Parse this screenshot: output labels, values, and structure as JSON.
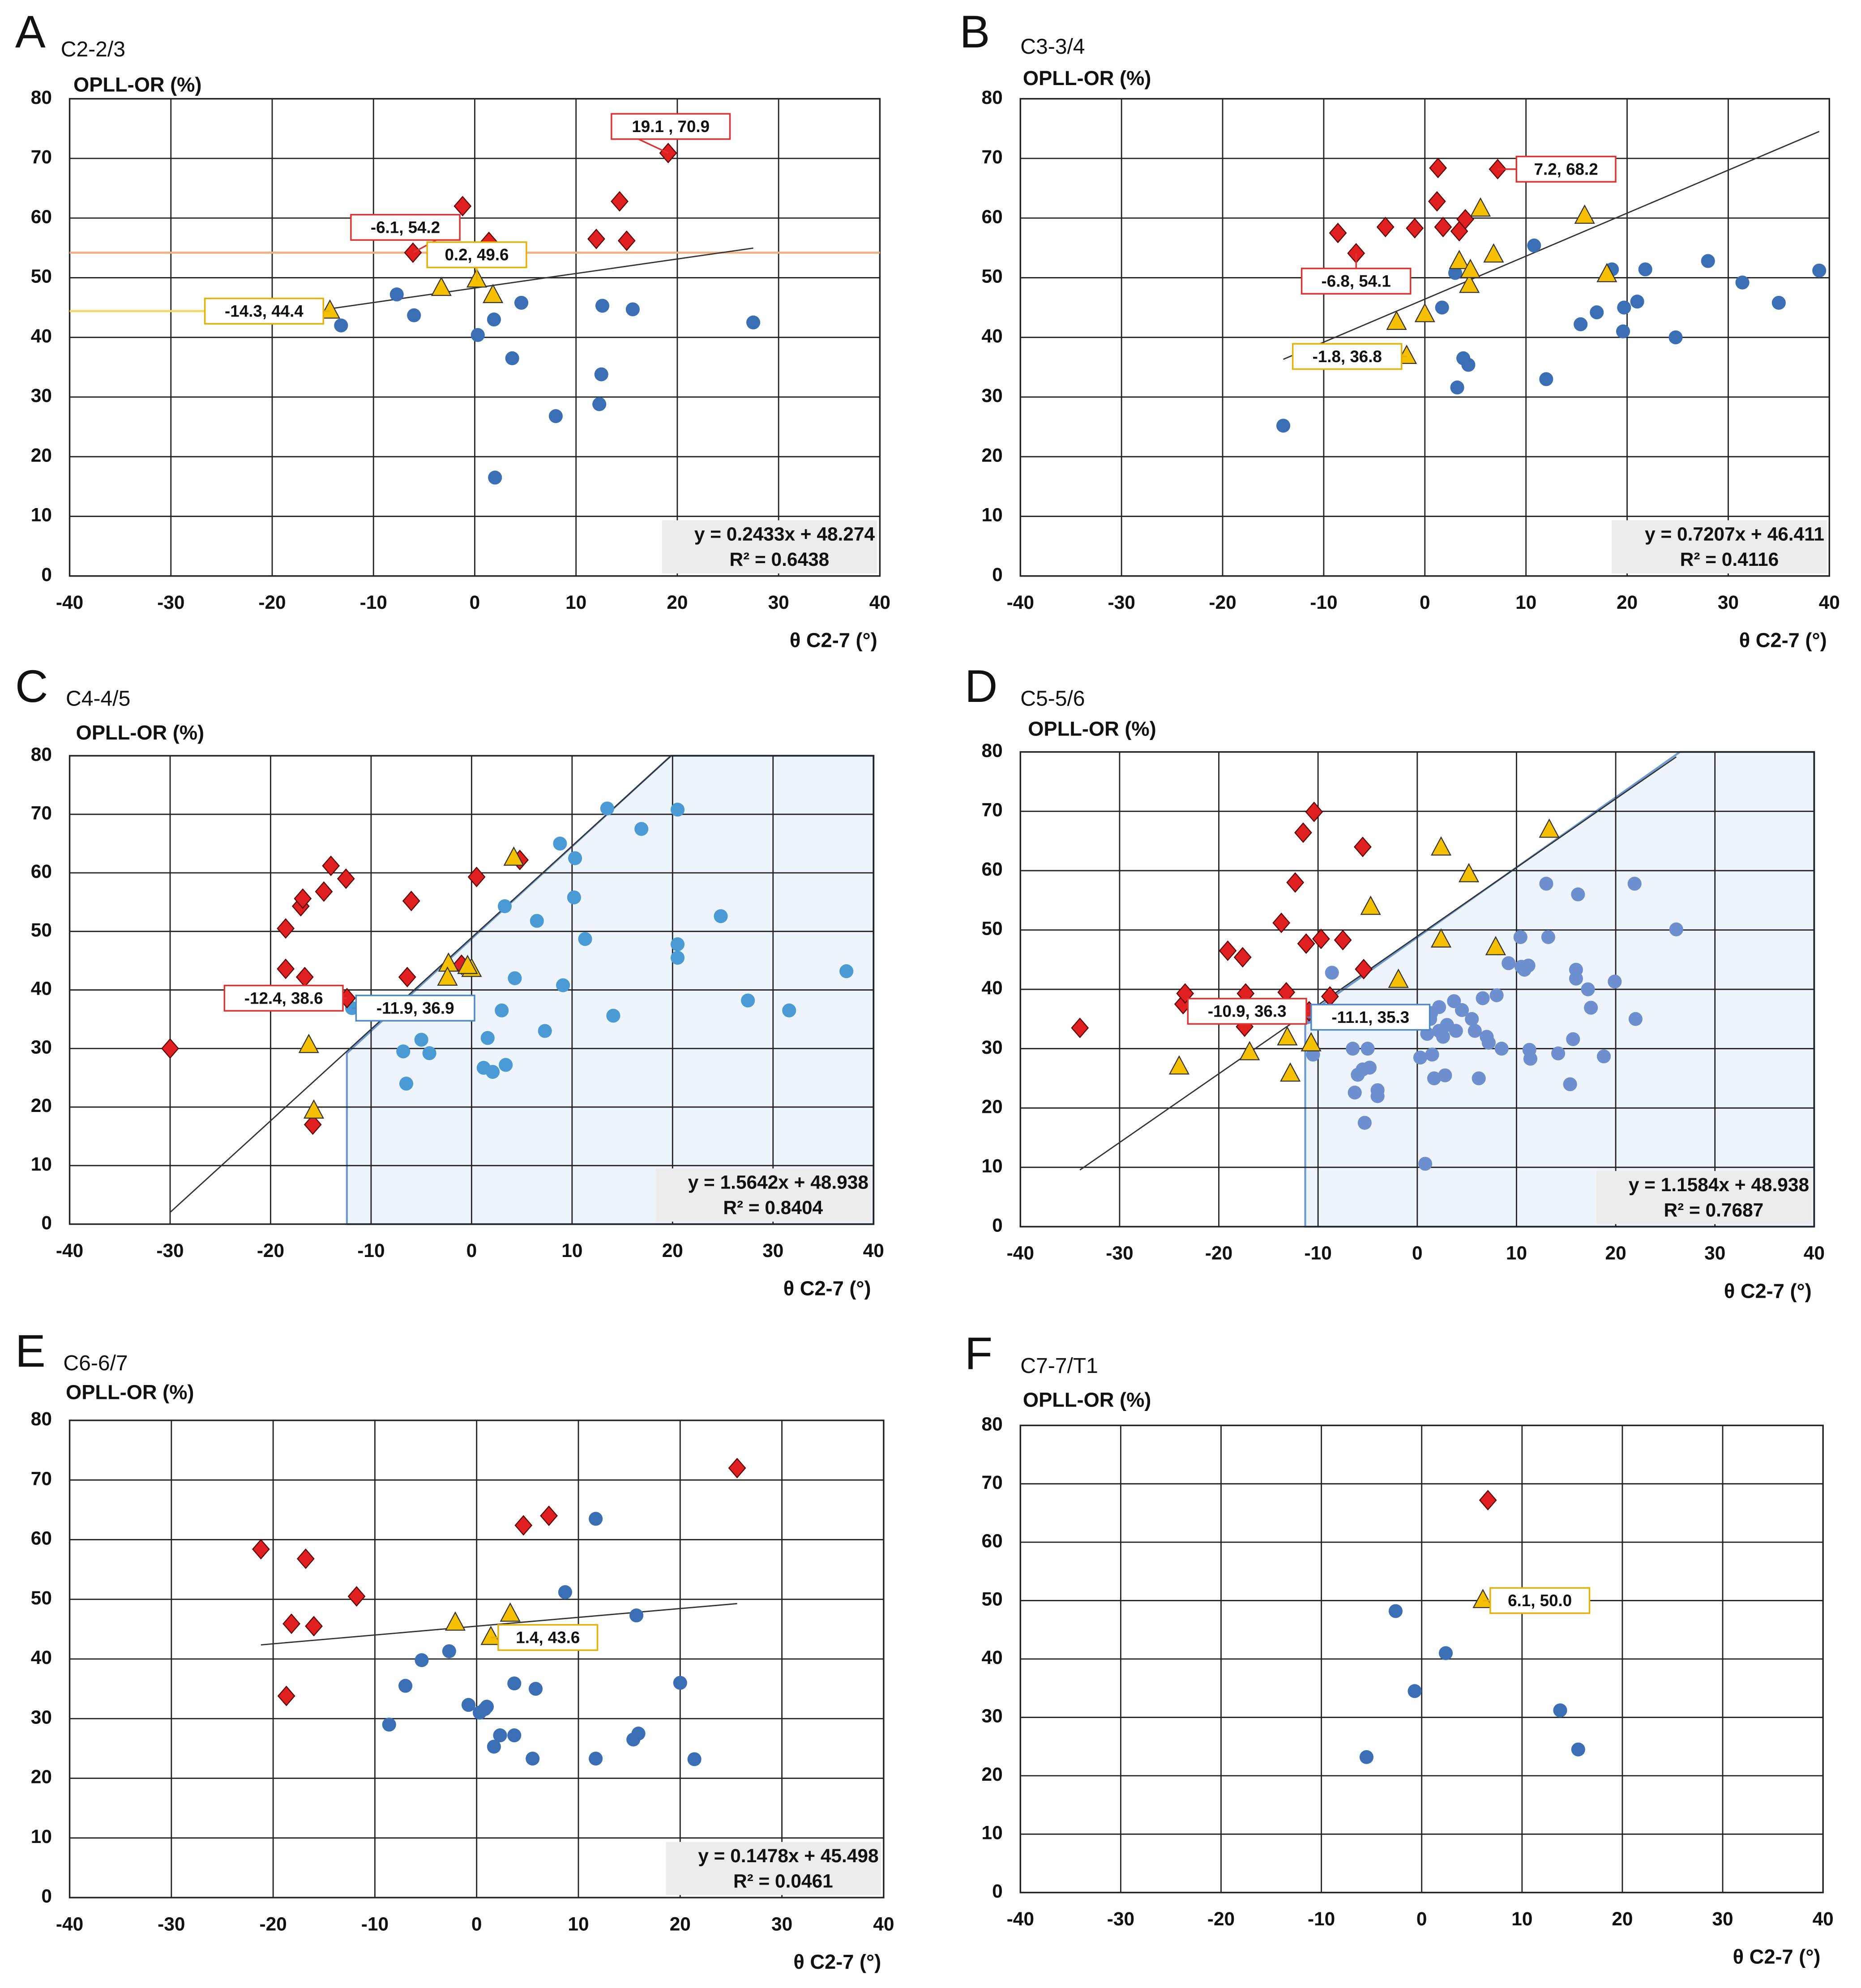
{
  "chart_data": [
    {
      "type": "scatter",
      "panel": "A",
      "title": "C2-2/3",
      "y_label": "OPLL-OR (%)",
      "x_label": "θ C2-7 (°)",
      "xlim": [
        -40,
        40
      ],
      "ylim": [
        0,
        80
      ],
      "xticks": [
        -40,
        -30,
        -20,
        -10,
        0,
        10,
        20,
        30,
        40
      ],
      "yticks": [
        0,
        10,
        20,
        30,
        40,
        50,
        60,
        70,
        80
      ],
      "grid": true,
      "series": [
        {
          "color": "#3a6fb5",
          "marker": "circle",
          "x": [
            -13.2,
            -7.7,
            -6,
            0.3,
            1.9,
            4.6,
            3.7,
            2,
            8,
            12.3,
            12.5,
            12.6,
            15.6,
            27.5
          ],
          "values": [
            42,
            47.2,
            43.7,
            40.4,
            43,
            45.8,
            36.5,
            16.5,
            26.8,
            28.8,
            33.8,
            45.3,
            44.7,
            42.5
          ]
        },
        {
          "color": "#e02020",
          "marker": "diamond",
          "x": [
            -1.2,
            -6.1,
            1.4,
            12,
            14.3,
            15,
            19.1
          ],
          "values": [
            62,
            54.2,
            56,
            56.5,
            62.8,
            56.2,
            70.9
          ]
        },
        {
          "color": "#f5c000",
          "marker": "triangle",
          "x": [
            -14.3,
            -3.3,
            0.2,
            1.8
          ],
          "values": [
            44.4,
            48.2,
            49.6,
            47
          ]
        }
      ],
      "annotations": [
        {
          "label": "19.1 , 70.9",
          "x": 19.1,
          "y": 70.9,
          "color": "#e03030"
        },
        {
          "label": "-6.1, 54.2",
          "x": -6.1,
          "y": 54.2,
          "color": "#e03030",
          "guide": "#f0b080"
        },
        {
          "label": "0.2, 49.6",
          "x": 0.2,
          "y": 49.6,
          "color": "#e8b000"
        },
        {
          "label": "-14.3, 44.4",
          "x": -14.3,
          "y": 44.4,
          "color": "#e8b000",
          "guide": "#f5d860"
        }
      ],
      "trendline": {
        "equation": "y = 0.2433x + 48.274",
        "r2": "R² = 0.6438"
      }
    },
    {
      "type": "scatter",
      "panel": "B",
      "title": "C3-3/4",
      "y_label": "OPLL-OR (%)",
      "x_label": "θ C2-7 (°)",
      "xlim": [
        -40,
        40
      ],
      "ylim": [
        0,
        80
      ],
      "xticks": [
        -40,
        -30,
        -20,
        -10,
        0,
        10,
        20,
        30,
        40
      ],
      "yticks": [
        0,
        10,
        20,
        30,
        40,
        50,
        60,
        70,
        80
      ],
      "grid": true,
      "series": [
        {
          "color": "#3a6fb5",
          "marker": "circle",
          "x": [
            -14,
            1.7,
            3,
            3.2,
            3.8,
            4.3,
            10.8,
            12,
            15.4,
            17,
            18.5,
            19.6,
            19.7,
            21,
            21.8,
            24.8,
            28,
            31.4,
            35,
            39
          ],
          "values": [
            25.2,
            45,
            50.8,
            31.6,
            36.5,
            35.4,
            55.4,
            33,
            42.2,
            44.2,
            51.4,
            41,
            45,
            46,
            51.4,
            40,
            52.8,
            49.2,
            45.8,
            51.2
          ]
        },
        {
          "color": "#e02020",
          "marker": "diamond",
          "x": [
            -8.6,
            -6.8,
            -3.9,
            -1,
            1.2,
            1.3,
            1.8,
            3.4,
            4,
            7.2
          ],
          "values": [
            57.5,
            54.1,
            58.5,
            58.3,
            62.8,
            68.4,
            58.5,
            57.8,
            59.8,
            68.2
          ]
        },
        {
          "color": "#f5c000",
          "marker": "triangle",
          "x": [
            -2.8,
            -1.8,
            0,
            3.4,
            4.4,
            4.5,
            5.5,
            6.8,
            15.8,
            18
          ],
          "values": [
            42.5,
            36.8,
            43.8,
            52.7,
            48.7,
            51.2,
            61.5,
            53.8,
            60.3,
            50.5
          ]
        }
      ],
      "annotations": [
        {
          "label": "7.2, 68.2",
          "x": 7.2,
          "y": 68.2,
          "color": "#e03030"
        },
        {
          "label": "-6.8, 54.1",
          "x": -6.8,
          "y": 54.1,
          "color": "#e03030"
        },
        {
          "label": "-1.8, 36.8",
          "x": -1.8,
          "y": 36.8,
          "color": "#e8b000"
        }
      ],
      "trendline": {
        "equation": "y = 0.7207x + 46.411",
        "r2": "R² = 0.4116"
      }
    },
    {
      "type": "scatter",
      "panel": "C",
      "title": "C4-4/5",
      "y_label": "OPLL-OR (%)",
      "x_label": "θ C2-7 (°)",
      "xlim": [
        -40,
        40
      ],
      "ylim": [
        0,
        80
      ],
      "xticks": [
        -40,
        -30,
        -20,
        -10,
        0,
        10,
        20,
        30,
        40
      ],
      "yticks": [
        0,
        10,
        20,
        30,
        40,
        50,
        60,
        70,
        80
      ],
      "grid": true,
      "series": [
        {
          "color": "#4a9ad6",
          "marker": "circle",
          "x": [
            -11.9,
            -6.8,
            -6.5,
            -5,
            -4.2,
            1.2,
            1.6,
            2.1,
            3,
            3.3,
            3.4,
            4.3,
            6.5,
            7.3,
            8.8,
            9.1,
            10.2,
            10.3,
            11.3,
            13.5,
            14.1,
            16.9,
            20.5,
            20.5,
            20.5,
            24.8,
            27.5,
            31.6,
            37.3
          ],
          "values": [
            36.9,
            29.5,
            24,
            31.5,
            29.2,
            26.7,
            31.8,
            26,
            36.5,
            54.3,
            27.2,
            42,
            51.8,
            33,
            65,
            40.8,
            55.8,
            62.5,
            48.7,
            71,
            35.6,
            67.5,
            70.8,
            47.8,
            45.5,
            52.6,
            38.2,
            36.5,
            43.2
          ]
        },
        {
          "color": "#e02020",
          "marker": "diamond",
          "x": [
            -30,
            -18.5,
            -18.5,
            -17,
            -16.8,
            -16.6,
            -15.8,
            -14.7,
            -14,
            -12.5,
            -12.4,
            -6.4,
            -6,
            -1,
            0.5,
            4.8
          ],
          "values": [
            30,
            50.5,
            43.6,
            54.3,
            55.6,
            42.2,
            17,
            56.8,
            61.2,
            59,
            38.6,
            42.2,
            55.2,
            44.3,
            59.3,
            62.2
          ]
        },
        {
          "color": "#f5c000",
          "marker": "triangle",
          "x": [
            -16.2,
            -15.7,
            -2.3,
            -2.4,
            0,
            4.2,
            -0.4
          ],
          "values": [
            30.5,
            19.3,
            44.4,
            42,
            43.5,
            62.5,
            44
          ]
        }
      ],
      "annotations": [
        {
          "label": "-12.4, 38.6",
          "x": -12.4,
          "y": 38.6,
          "color": "#e03030"
        },
        {
          "label": "-11.9, 36.9",
          "x": -11.9,
          "y": 36.9,
          "color": "#4a88c8"
        }
      ],
      "trendline": {
        "equation": "y = 1.5642x + 48.938",
        "r2": "R² = 0.8404"
      }
    },
    {
      "type": "scatter",
      "panel": "D",
      "title": "C5-5/6",
      "y_label": "OPLL-OR (%)",
      "x_label": "θ C2-7 (°)",
      "xlim": [
        -40,
        40
      ],
      "ylim": [
        0,
        80
      ],
      "xticks": [
        -40,
        -30,
        -20,
        -10,
        0,
        10,
        20,
        30,
        40
      ],
      "yticks": [
        0,
        10,
        20,
        30,
        40,
        50,
        60,
        70,
        80
      ],
      "grid": true,
      "series": [
        {
          "color": "#6e8fcf",
          "marker": "circle",
          "x": [
            -11.1,
            -10.5,
            -8.6,
            -6.5,
            -6.3,
            -6,
            -5.5,
            -5.3,
            -5,
            -4.8,
            -4,
            -4,
            0.3,
            0.8,
            1,
            1.3,
            1.4,
            1.5,
            1.7,
            2.2,
            2.2,
            2.6,
            2.8,
            3,
            3.7,
            3.9,
            4.5,
            5.5,
            5.8,
            6.2,
            6.6,
            7,
            7.2,
            8,
            8.5,
            9.2,
            10.4,
            10.5,
            10.8,
            11.2,
            11.3,
            11.4,
            13,
            13.2,
            14.2,
            15.4,
            15.7,
            16,
            16,
            16.2,
            17.2,
            17.5,
            18.8,
            19.9,
            21.9,
            22,
            26.1
          ],
          "values": [
            35.3,
            29,
            42.8,
            30,
            22.6,
            25.6,
            26.5,
            17.5,
            30,
            26.8,
            23,
            22,
            28.5,
            10.6,
            32.5,
            35,
            36,
            29,
            25,
            37,
            33,
            32,
            25.5,
            34,
            38,
            33,
            36.5,
            35,
            33,
            25,
            38.5,
            32,
            31,
            39,
            30,
            44.4,
            48.8,
            43.8,
            43.3,
            44,
            29.8,
            28.3,
            57.8,
            48.8,
            29.2,
            24,
            31.6,
            41.8,
            43.3,
            56,
            40,
            36.9,
            28.7,
            41.3,
            57.8,
            35,
            50.1
          ]
        },
        {
          "color": "#e02020",
          "marker": "diamond",
          "x": [
            -34,
            -23.6,
            -23.4,
            -19.1,
            -17.6,
            -17.3,
            -17.4,
            -13.7,
            -13.2,
            -12.3,
            -11.5,
            -11.2,
            -10.9,
            -10.4,
            -9.7,
            -8.8,
            -7.5,
            -5.5,
            -5.4
          ],
          "values": [
            33.5,
            37.5,
            39.3,
            46.5,
            45.4,
            39.3,
            33.7,
            51.2,
            39.5,
            58,
            66.4,
            47.7,
            36.3,
            69.9,
            48.5,
            38.8,
            48.3,
            64,
            43.4
          ]
        },
        {
          "color": "#f5c000",
          "marker": "triangle",
          "x": [
            -24,
            -16.9,
            -13.1,
            -12.8,
            -10.7,
            -1.9,
            2.4,
            2.4,
            5.2,
            7.9,
            13.3,
            -4.7
          ],
          "values": [
            26.9,
            29.3,
            31.8,
            25.7,
            30.8,
            41.5,
            48.3,
            63.8,
            59.3,
            47,
            66.8,
            53.8
          ]
        }
      ],
      "annotations": [
        {
          "label": "-10.9, 36.3",
          "x": -10.9,
          "y": 36.3,
          "color": "#e03030"
        },
        {
          "label": "-11.1, 35.3",
          "x": -11.1,
          "y": 35.3,
          "color": "#4a88c8"
        }
      ],
      "trendline": {
        "equation": "y = 1.1584x + 48.938",
        "r2": "R² = 0.7687"
      }
    },
    {
      "type": "scatter",
      "panel": "E",
      "title": "C6-6/7",
      "y_label": "OPLL-OR (%)",
      "x_label": "θ C2-7 (°)",
      "xlim": [
        -40,
        40
      ],
      "ylim": [
        0,
        80
      ],
      "xticks": [
        -40,
        -30,
        -20,
        -10,
        0,
        10,
        20,
        30,
        40
      ],
      "yticks": [
        0,
        10,
        20,
        30,
        40,
        50,
        60,
        70,
        80
      ],
      "grid": true,
      "series": [
        {
          "color": "#3a6fb5",
          "marker": "circle",
          "x": [
            -8.6,
            -7,
            -5.4,
            -2.7,
            -0.8,
            0.3,
            0.8,
            1,
            1.7,
            2.3,
            3.7,
            3.7,
            5.5,
            5.8,
            8.7,
            11.7,
            11.7,
            15.4,
            15.7,
            15.9,
            20,
            21.4
          ],
          "values": [
            29,
            35.5,
            39.8,
            41.3,
            32.3,
            31,
            31.6,
            32,
            25.3,
            27.2,
            35.9,
            27.2,
            23.3,
            35,
            51.2,
            23.3,
            63.5,
            26.5,
            47.3,
            27.5,
            36,
            23.2
          ]
        },
        {
          "color": "#e02020",
          "marker": "diamond",
          "x": [
            -21.2,
            -18.7,
            -18.2,
            -16.8,
            -16,
            -11.8,
            4.6,
            7.1,
            25.6
          ],
          "values": [
            58.4,
            33.8,
            45.9,
            56.8,
            45.5,
            50.5,
            62.4,
            64,
            72
          ]
        },
        {
          "color": "#f5c000",
          "marker": "triangle",
          "x": [
            -2.1,
            1.4,
            3.3
          ],
          "values": [
            46,
            43.6,
            47.5
          ]
        }
      ],
      "annotations": [
        {
          "label": "1.4, 43.6",
          "x": 1.4,
          "y": 43.6,
          "color": "#e8b000"
        }
      ],
      "trendline": {
        "equation": "y = 0.1478x + 45.498",
        "r2": "R² = 0.0461"
      }
    },
    {
      "type": "scatter",
      "panel": "F",
      "title": "C7-7/T1",
      "y_label": "OPLL-OR (%)",
      "x_label": "θ C2-7 (°)",
      "xlim": [
        -40,
        40
      ],
      "ylim": [
        0,
        80
      ],
      "xticks": [
        -40,
        -30,
        -20,
        -10,
        0,
        10,
        20,
        30,
        40
      ],
      "yticks": [
        0,
        10,
        20,
        30,
        40,
        50,
        60,
        70,
        80
      ],
      "grid": true,
      "series": [
        {
          "color": "#3a6fb5",
          "marker": "circle",
          "x": [
            -2.6,
            -0.7,
            2.4,
            -5.5,
            13.8,
            15.6
          ],
          "values": [
            48.2,
            34.5,
            41,
            23.2,
            31.2,
            24.5
          ]
        },
        {
          "color": "#e02020",
          "marker": "diamond",
          "x": [
            6.6
          ],
          "values": [
            67.2
          ]
        },
        {
          "color": "#f5c000",
          "marker": "triangle",
          "x": [
            6.1
          ],
          "values": [
            50
          ]
        }
      ],
      "annotations": [
        {
          "label": "6.1, 50.0",
          "x": 6.1,
          "y": 50,
          "color": "#e8b000"
        }
      ]
    }
  ]
}
